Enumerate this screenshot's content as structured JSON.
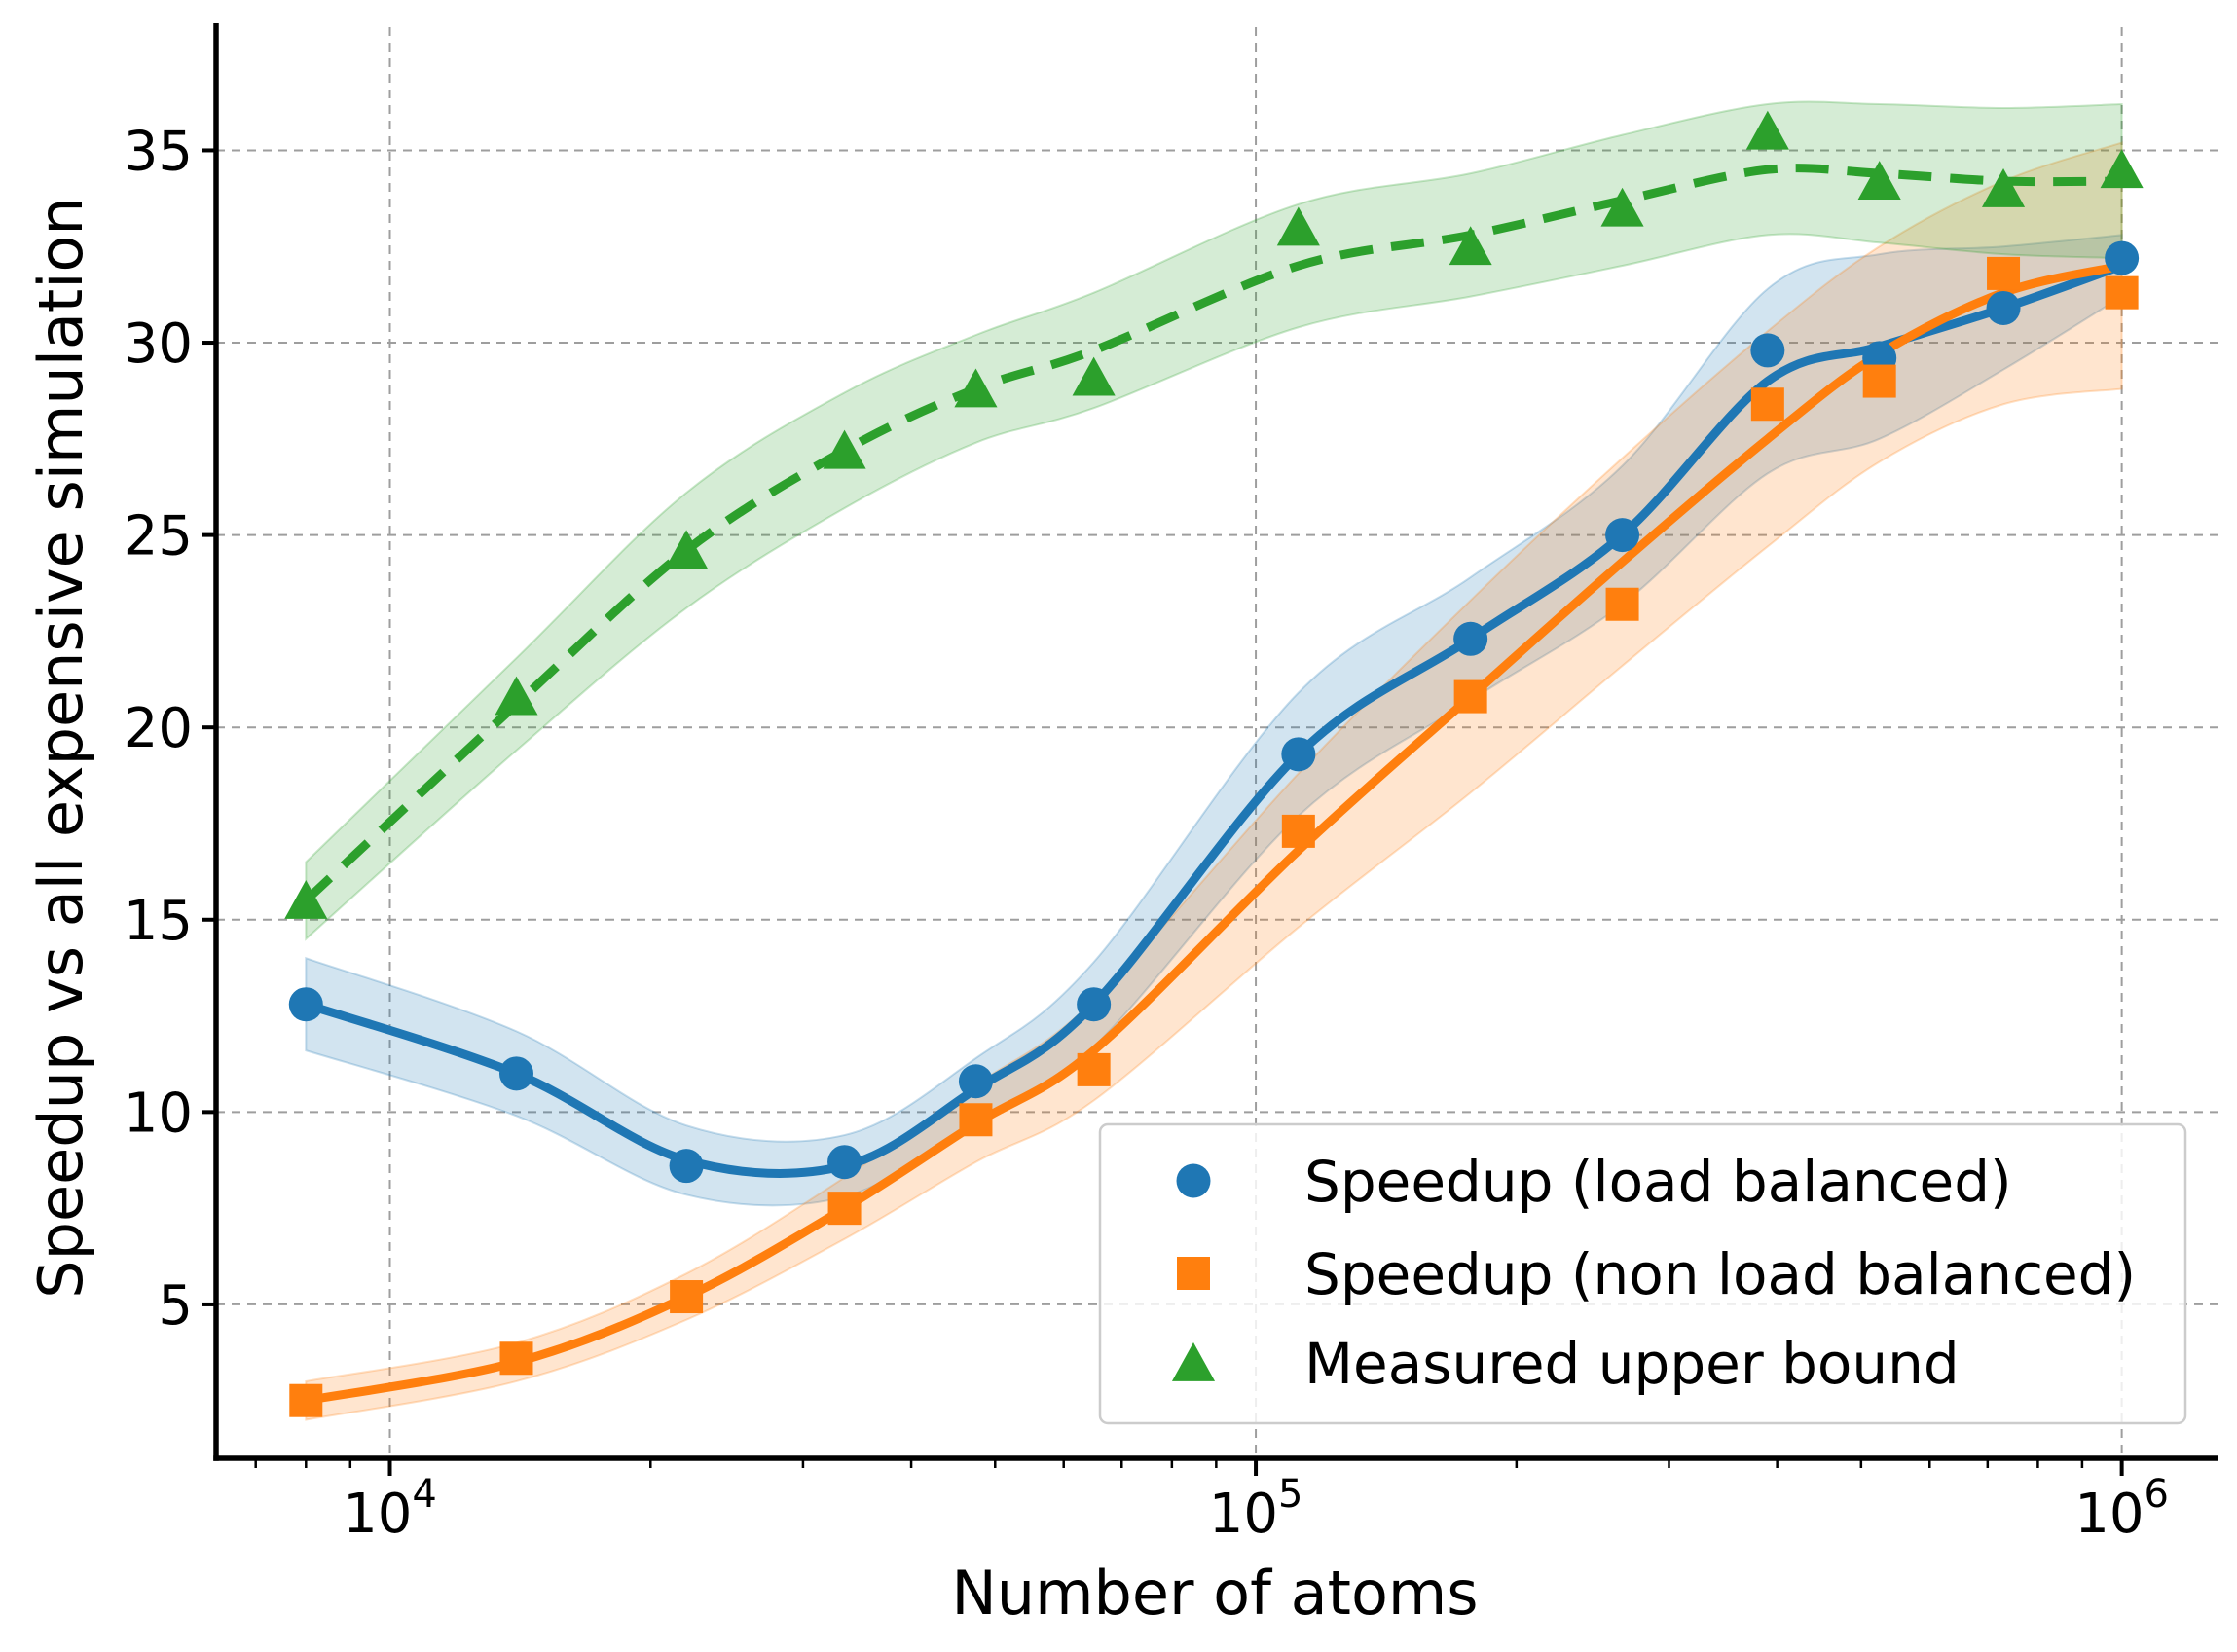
{
  "chart_data": {
    "type": "line",
    "xscale": "log",
    "xlim": [
      6300,
      1290000
    ],
    "ylim": [
      1,
      38.2
    ],
    "xlabel": "Number of atoms",
    "ylabel": "Speedup vs all expensive simulation",
    "x_major_ticks": [
      {
        "value": 10000,
        "base": "10",
        "exp": "4"
      },
      {
        "value": 100000,
        "base": "10",
        "exp": "5"
      },
      {
        "value": 1000000,
        "base": "10",
        "exp": "6"
      }
    ],
    "y_ticks": [
      5,
      10,
      15,
      20,
      25,
      30,
      35
    ],
    "grid": true,
    "legend_position": "lower-right",
    "x": [
      8000,
      14000,
      22000,
      33500,
      47500,
      65000,
      112000,
      177000,
      265000,
      390000,
      525000,
      730000,
      1000000
    ],
    "series": [
      {
        "name": "Speedup (load balanced)",
        "color": "#1f77b4",
        "marker": "circle",
        "line_style": "solid",
        "values": [
          12.8,
          11.0,
          8.6,
          8.7,
          10.8,
          12.8,
          19.3,
          22.3,
          25.0,
          29.8,
          29.6,
          30.9,
          32.2
        ],
        "fit": [
          12.8,
          11.0,
          8.75,
          8.6,
          10.6,
          12.8,
          19.3,
          22.3,
          25.0,
          29.0,
          29.9,
          30.9,
          32.0
        ],
        "band_halfwidth": [
          1.2,
          1.1,
          0.9,
          0.8,
          0.8,
          1.1,
          1.6,
          1.6,
          1.8,
          2.4,
          2.4,
          1.6,
          0.8
        ]
      },
      {
        "name": "Speedup (non load balanced)",
        "color": "#ff7f0e",
        "marker": "square",
        "line_style": "solid",
        "values": [
          2.5,
          3.6,
          5.2,
          7.5,
          9.8,
          11.1,
          17.3,
          20.8,
          23.2,
          28.4,
          29.0,
          31.8,
          31.3
        ],
        "fit": [
          2.5,
          3.5,
          5.2,
          7.5,
          9.7,
          11.6,
          16.8,
          20.8,
          24.3,
          27.5,
          29.7,
          31.3,
          32.0
        ],
        "band_halfwidth": [
          0.5,
          0.5,
          0.6,
          0.8,
          1.0,
          1.3,
          2.0,
          2.5,
          2.7,
          2.8,
          2.8,
          2.9,
          3.2
        ]
      },
      {
        "name": "Measured upper bound",
        "color": "#2ca02c",
        "marker": "triangle",
        "line_style": "dashed",
        "values": [
          15.5,
          20.8,
          24.6,
          27.2,
          28.8,
          29.1,
          33.0,
          32.5,
          33.5,
          35.5,
          34.2,
          34.0,
          34.5
        ],
        "fit": [
          15.5,
          20.6,
          24.6,
          27.2,
          28.8,
          29.8,
          32.0,
          32.8,
          33.7,
          34.5,
          34.4,
          34.2,
          34.2
        ],
        "band_halfwidth": [
          1.0,
          1.2,
          1.5,
          1.5,
          1.4,
          1.5,
          1.6,
          1.6,
          1.7,
          1.7,
          1.8,
          1.9,
          2.0
        ]
      }
    ]
  }
}
